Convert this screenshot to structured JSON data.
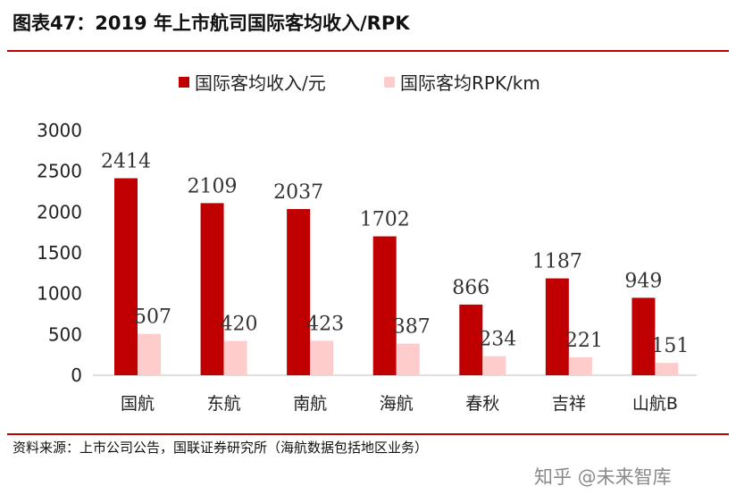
{
  "header": {
    "title": "图表47：2019 年上市航司国际客均收入/RPK"
  },
  "footer": {
    "source": "资料来源：上市公司公告，国联证券研究所（海航数据包括地区业务）",
    "watermark": "知乎 @未来智库"
  },
  "chart_data": {
    "type": "bar",
    "categories": [
      "国航",
      "东航",
      "南航",
      "海航",
      "春秋",
      "吉祥",
      "山航B"
    ],
    "series": [
      {
        "name": "国际客均收入/元",
        "values": [
          2414,
          2109,
          2037,
          1702,
          866,
          1187,
          949
        ],
        "color": "#c00000"
      },
      {
        "name": "国际客均RPK/km",
        "values": [
          507,
          420,
          423,
          387,
          234,
          221,
          151
        ],
        "color": "#ffcccc"
      }
    ],
    "ylim": [
      0,
      3000
    ],
    "yticks": [
      0,
      500,
      1000,
      1500,
      2000,
      2500,
      3000
    ],
    "legend_position": "top-center",
    "grid": false
  }
}
